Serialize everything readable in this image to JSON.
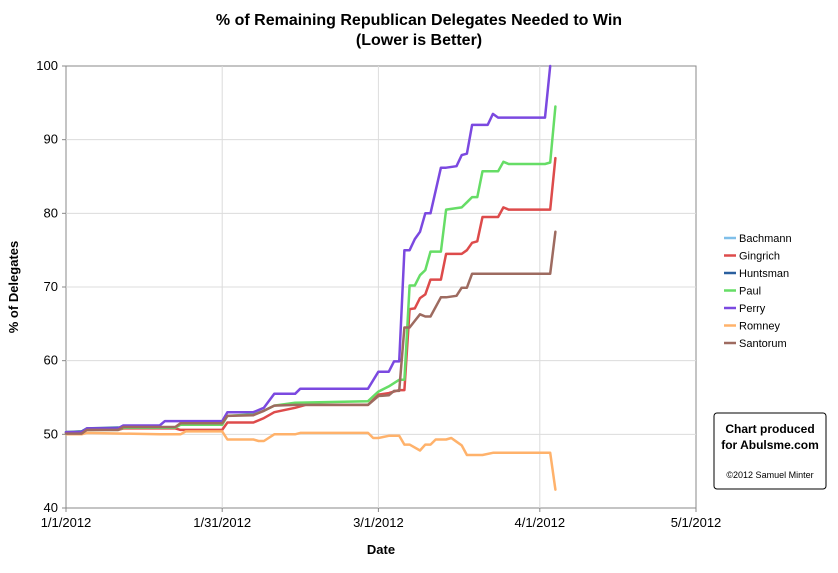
{
  "chart_data": {
    "type": "line",
    "title": "% of Remaining Republican Delegates Needed to Win",
    "subtitle": "(Lower is Better)",
    "xlabel": "Date",
    "ylabel": "% of Delegates",
    "x_ticks": [
      "1/1/2012",
      "1/31/2012",
      "3/1/2012",
      "4/1/2012",
      "5/1/2012"
    ],
    "y_ticks": [
      "40",
      "50",
      "60",
      "70",
      "80",
      "90",
      "100"
    ],
    "xlim": [
      "2012-01-01",
      "2012-05-01"
    ],
    "ylim": [
      40,
      100
    ],
    "grid": "vertical and horizontal major gridlines",
    "legend_position": "right",
    "series": [
      {
        "name": "Bachmann",
        "color": "#7fbfe9",
        "points": [
          [
            "2012-01-01",
            50.3
          ],
          [
            "2012-01-04",
            50.3
          ]
        ]
      },
      {
        "name": "Gingrich",
        "color": "#dd4b4b",
        "points": [
          [
            "2012-01-01",
            50.2
          ],
          [
            "2012-01-04",
            50.2
          ],
          [
            "2012-01-05",
            50.6
          ],
          [
            "2012-01-11",
            50.6
          ],
          [
            "2012-01-12",
            50.8
          ],
          [
            "2012-01-22",
            50.8
          ],
          [
            "2012-01-23",
            50.6
          ],
          [
            "2012-01-31",
            50.6
          ],
          [
            "2012-02-01",
            51.6
          ],
          [
            "2012-02-06",
            51.6
          ],
          [
            "2012-02-08",
            52.2
          ],
          [
            "2012-02-10",
            53.0
          ],
          [
            "2012-02-14",
            53.6
          ],
          [
            "2012-02-16",
            54.0
          ],
          [
            "2012-02-28",
            54.0
          ],
          [
            "2012-03-01",
            55.4
          ],
          [
            "2012-03-03",
            55.6
          ],
          [
            "2012-03-05",
            56.0
          ],
          [
            "2012-03-06",
            56.0
          ],
          [
            "2012-03-07",
            67.0
          ],
          [
            "2012-03-08",
            67.1
          ],
          [
            "2012-03-09",
            68.5
          ],
          [
            "2012-03-10",
            69.0
          ],
          [
            "2012-03-11",
            71.0
          ],
          [
            "2012-03-13",
            71.0
          ],
          [
            "2012-03-14",
            74.5
          ],
          [
            "2012-03-17",
            74.5
          ],
          [
            "2012-03-18",
            75.0
          ],
          [
            "2012-03-19",
            76.0
          ],
          [
            "2012-03-20",
            76.2
          ],
          [
            "2012-03-21",
            79.5
          ],
          [
            "2012-03-24",
            79.5
          ],
          [
            "2012-03-25",
            80.8
          ],
          [
            "2012-03-26",
            80.5
          ],
          [
            "2012-04-02",
            80.5
          ],
          [
            "2012-04-03",
            80.5
          ],
          [
            "2012-04-04",
            87.5
          ]
        ]
      },
      {
        "name": "Huntsman",
        "color": "#2a5f9e",
        "points": [
          [
            "2012-01-01",
            50.3
          ],
          [
            "2012-01-04",
            50.4
          ],
          [
            "2012-01-05",
            50.8
          ],
          [
            "2012-01-16",
            51.0
          ]
        ]
      },
      {
        "name": "Paul",
        "color": "#66dd66",
        "points": [
          [
            "2012-01-01",
            50.3
          ],
          [
            "2012-01-04",
            50.3
          ],
          [
            "2012-01-05",
            50.6
          ],
          [
            "2012-01-11",
            50.6
          ],
          [
            "2012-01-12",
            50.9
          ],
          [
            "2012-01-22",
            50.9
          ],
          [
            "2012-01-23",
            51.3
          ],
          [
            "2012-01-31",
            51.3
          ],
          [
            "2012-02-01",
            52.5
          ],
          [
            "2012-02-06",
            52.7
          ],
          [
            "2012-02-08",
            53.2
          ],
          [
            "2012-02-10",
            53.9
          ],
          [
            "2012-02-14",
            54.3
          ],
          [
            "2012-02-28",
            54.5
          ],
          [
            "2012-03-01",
            55.8
          ],
          [
            "2012-03-03",
            56.5
          ],
          [
            "2012-03-05",
            57.4
          ],
          [
            "2012-03-06",
            57.4
          ],
          [
            "2012-03-07",
            70.2
          ],
          [
            "2012-03-08",
            70.2
          ],
          [
            "2012-03-09",
            71.6
          ],
          [
            "2012-03-10",
            72.3
          ],
          [
            "2012-03-11",
            74.8
          ],
          [
            "2012-03-13",
            74.8
          ],
          [
            "2012-03-14",
            80.5
          ],
          [
            "2012-03-17",
            80.8
          ],
          [
            "2012-03-18",
            81.5
          ],
          [
            "2012-03-19",
            82.2
          ],
          [
            "2012-03-20",
            82.2
          ],
          [
            "2012-03-21",
            85.7
          ],
          [
            "2012-03-24",
            85.7
          ],
          [
            "2012-03-25",
            87.0
          ],
          [
            "2012-03-26",
            86.7
          ],
          [
            "2012-04-02",
            86.7
          ],
          [
            "2012-04-03",
            86.9
          ],
          [
            "2012-04-04",
            94.5
          ]
        ]
      },
      {
        "name": "Perry",
        "color": "#7b49e0",
        "points": [
          [
            "2012-01-01",
            50.3
          ],
          [
            "2012-01-04",
            50.3
          ],
          [
            "2012-01-05",
            50.8
          ],
          [
            "2012-01-11",
            50.8
          ],
          [
            "2012-01-12",
            51.2
          ],
          [
            "2012-01-19",
            51.2
          ],
          [
            "2012-01-20",
            51.8
          ],
          [
            "2012-01-31",
            51.8
          ],
          [
            "2012-02-01",
            53.0
          ],
          [
            "2012-02-06",
            53.0
          ],
          [
            "2012-02-08",
            53.6
          ],
          [
            "2012-02-10",
            55.5
          ],
          [
            "2012-02-14",
            55.5
          ],
          [
            "2012-02-15",
            56.2
          ],
          [
            "2012-02-28",
            56.2
          ],
          [
            "2012-03-01",
            58.5
          ],
          [
            "2012-03-03",
            58.5
          ],
          [
            "2012-03-04",
            59.9
          ],
          [
            "2012-03-05",
            59.9
          ],
          [
            "2012-03-06",
            75.0
          ],
          [
            "2012-03-07",
            75.0
          ],
          [
            "2012-03-08",
            76.5
          ],
          [
            "2012-03-09",
            77.5
          ],
          [
            "2012-03-10",
            80.0
          ],
          [
            "2012-03-11",
            80.0
          ],
          [
            "2012-03-13",
            86.2
          ],
          [
            "2012-03-14",
            86.2
          ],
          [
            "2012-03-16",
            86.4
          ],
          [
            "2012-03-17",
            87.9
          ],
          [
            "2012-03-18",
            88.1
          ],
          [
            "2012-03-19",
            92.0
          ],
          [
            "2012-03-22",
            92.0
          ],
          [
            "2012-03-23",
            93.5
          ],
          [
            "2012-03-24",
            93.0
          ],
          [
            "2012-04-02",
            93.0
          ],
          [
            "2012-04-03",
            100
          ]
        ]
      },
      {
        "name": "Romney",
        "color": "#ffb26b",
        "points": [
          [
            "2012-01-01",
            50.0
          ],
          [
            "2012-01-04",
            50.0
          ],
          [
            "2012-01-05",
            50.2
          ],
          [
            "2012-01-19",
            50.0
          ],
          [
            "2012-01-23",
            50.0
          ],
          [
            "2012-01-24",
            50.4
          ],
          [
            "2012-01-31",
            50.4
          ],
          [
            "2012-02-01",
            49.3
          ],
          [
            "2012-02-06",
            49.3
          ],
          [
            "2012-02-07",
            49.1
          ],
          [
            "2012-02-08",
            49.1
          ],
          [
            "2012-02-10",
            50.0
          ],
          [
            "2012-02-14",
            50.0
          ],
          [
            "2012-02-15",
            50.2
          ],
          [
            "2012-02-28",
            50.2
          ],
          [
            "2012-02-29",
            49.5
          ],
          [
            "2012-03-01",
            49.5
          ],
          [
            "2012-03-03",
            49.8
          ],
          [
            "2012-03-05",
            49.8
          ],
          [
            "2012-03-06",
            48.6
          ],
          [
            "2012-03-07",
            48.6
          ],
          [
            "2012-03-09",
            47.8
          ],
          [
            "2012-03-10",
            48.6
          ],
          [
            "2012-03-11",
            48.6
          ],
          [
            "2012-03-12",
            49.3
          ],
          [
            "2012-03-14",
            49.3
          ],
          [
            "2012-03-15",
            49.5
          ],
          [
            "2012-03-16",
            49.0
          ],
          [
            "2012-03-17",
            48.5
          ],
          [
            "2012-03-18",
            47.2
          ],
          [
            "2012-03-21",
            47.2
          ],
          [
            "2012-03-23",
            47.5
          ],
          [
            "2012-04-02",
            47.5
          ],
          [
            "2012-04-03",
            47.5
          ],
          [
            "2012-04-04",
            42.5
          ]
        ]
      },
      {
        "name": "Santorum",
        "color": "#9e6b60",
        "points": [
          [
            "2012-01-01",
            50.1
          ],
          [
            "2012-01-04",
            50.1
          ],
          [
            "2012-01-05",
            50.6
          ],
          [
            "2012-01-11",
            50.6
          ],
          [
            "2012-01-12",
            51.0
          ],
          [
            "2012-01-22",
            51.0
          ],
          [
            "2012-01-23",
            51.5
          ],
          [
            "2012-01-31",
            51.5
          ],
          [
            "2012-02-01",
            52.5
          ],
          [
            "2012-02-06",
            52.6
          ],
          [
            "2012-02-08",
            53.2
          ],
          [
            "2012-02-10",
            53.9
          ],
          [
            "2012-02-14",
            54.0
          ],
          [
            "2012-02-28",
            54.0
          ],
          [
            "2012-03-01",
            55.2
          ],
          [
            "2012-03-03",
            55.3
          ],
          [
            "2012-03-04",
            55.9
          ],
          [
            "2012-03-05",
            55.9
          ],
          [
            "2012-03-06",
            64.5
          ],
          [
            "2012-03-07",
            64.5
          ],
          [
            "2012-03-08",
            65.4
          ],
          [
            "2012-03-09",
            66.3
          ],
          [
            "2012-03-10",
            66.0
          ],
          [
            "2012-03-11",
            66.0
          ],
          [
            "2012-03-13",
            68.6
          ],
          [
            "2012-03-14",
            68.6
          ],
          [
            "2012-03-16",
            68.8
          ],
          [
            "2012-03-17",
            69.9
          ],
          [
            "2012-03-18",
            69.9
          ],
          [
            "2012-03-19",
            71.8
          ],
          [
            "2012-04-02",
            71.8
          ],
          [
            "2012-04-03",
            71.8
          ],
          [
            "2012-04-04",
            77.5
          ]
        ]
      }
    ],
    "credit": {
      "line1": "Chart produced",
      "line2": "for Abulsme.com",
      "copyright": "©2012 Samuel Minter"
    }
  }
}
